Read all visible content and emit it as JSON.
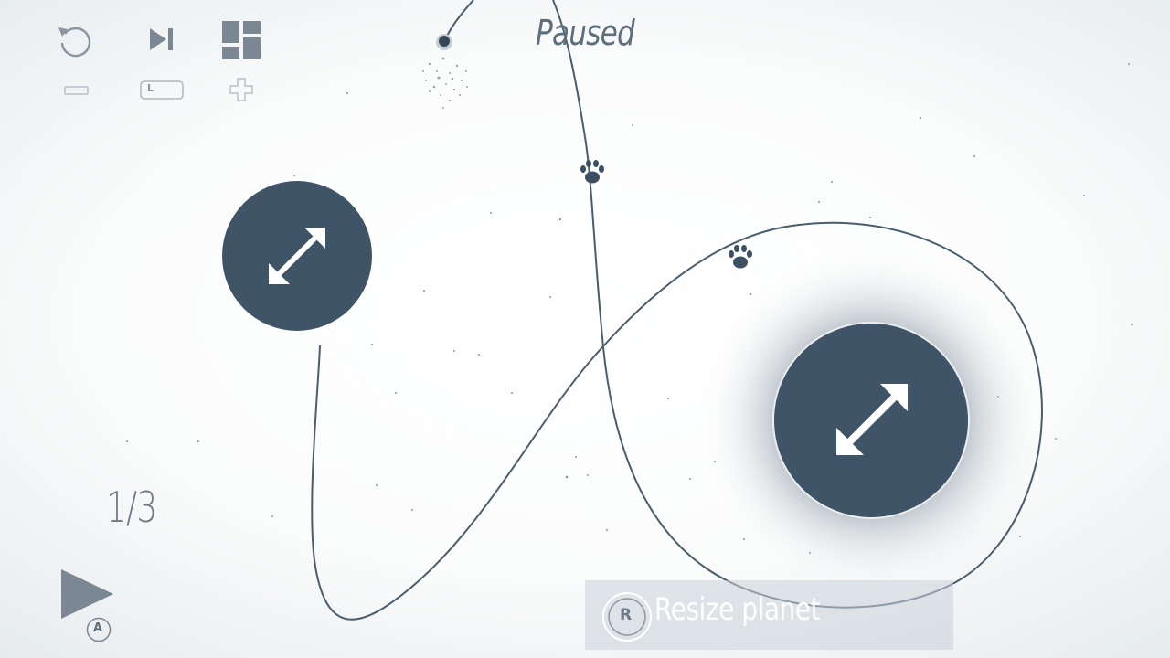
{
  "status": {
    "paused_label": "Paused"
  },
  "level": {
    "counter": "1/3"
  },
  "toolbar": {
    "undo_icon": "undo-icon",
    "skip_icon": "skip-forward-icon",
    "menu_icon": "level-grid-icon",
    "undo_key_hint": "minus-button-icon",
    "skip_key_hint": "L",
    "menu_key_hint": "plus-button-icon"
  },
  "controls": {
    "play_icon": "play-icon",
    "play_key": "A"
  },
  "tooltip": {
    "button_key": "R",
    "text": "Resize planet"
  },
  "planets": [
    {
      "name": "planet-small",
      "icon": "resize-arrows-icon"
    },
    {
      "name": "planet-large",
      "icon": "resize-arrows-icon",
      "selected": true
    }
  ],
  "colors": {
    "planet": "#405468",
    "ui_gray": "#8a969f",
    "trajectory": "#405468",
    "glow": "#6f7d89"
  }
}
